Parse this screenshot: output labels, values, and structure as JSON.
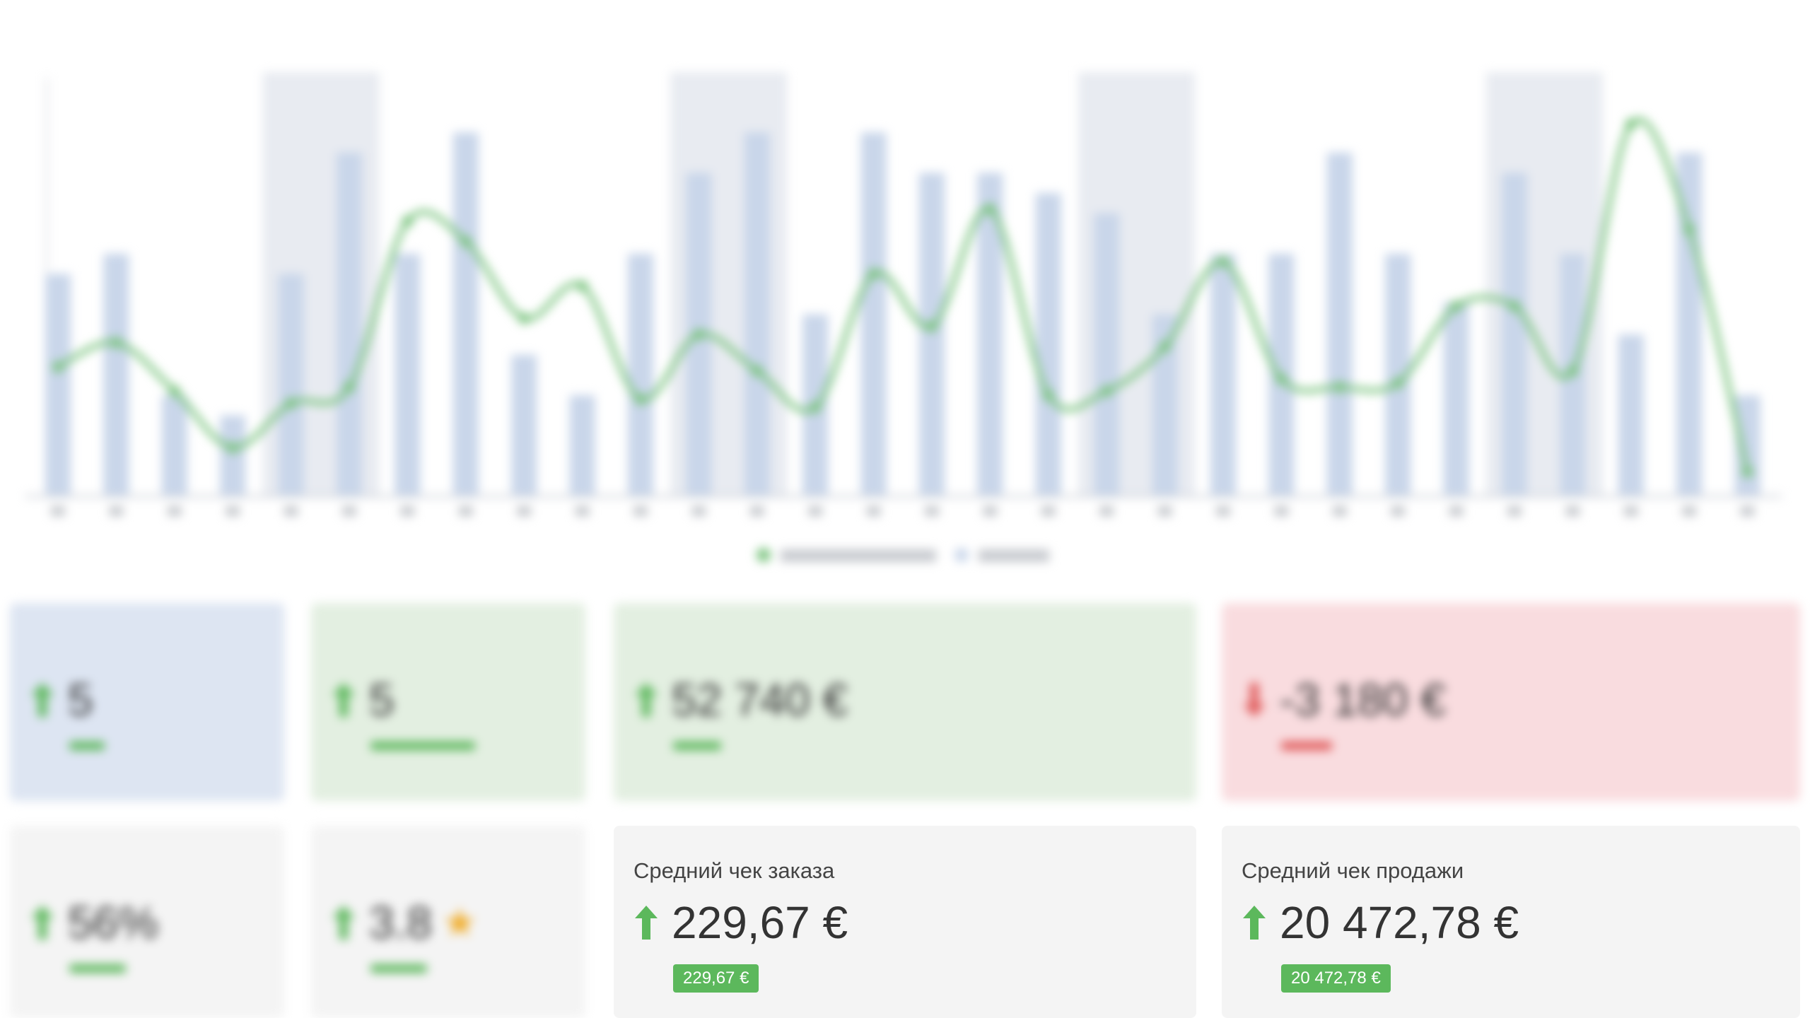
{
  "chart": {
    "title": "",
    "legend": [
      "",
      ""
    ],
    "x_labels": [
      "",
      "",
      "",
      "",
      "",
      "",
      "",
      "",
      "",
      "",
      "",
      "",
      "",
      "",
      "",
      "",
      "",
      "",
      "",
      "",
      "",
      "",
      "",
      "",
      "",
      "",
      "",
      "",
      "",
      ""
    ]
  },
  "chart_data": {
    "type": "bar",
    "title": "",
    "series": [
      {
        "values": [
          5.5,
          6,
          2.5,
          2,
          5.5,
          8.5,
          6,
          9,
          3.5,
          2.5,
          6,
          8,
          9,
          4.5,
          9,
          8,
          8,
          7.5,
          7,
          4.5,
          6,
          6,
          8.5,
          6,
          4.8,
          8,
          6,
          4,
          8.5,
          2.5
        ]
      },
      {
        "values": [
          3.2,
          3.8,
          2.6,
          1.2,
          2.3,
          2.7,
          6.8,
          6.3,
          4.4,
          5.2,
          2.4,
          4,
          3.1,
          2.2,
          5.5,
          4.2,
          7.1,
          2.5,
          2.6,
          3.7,
          5.8,
          2.9,
          2.7,
          2.8,
          4.7,
          4.7,
          3.1,
          9.2,
          6.6,
          0.6
        ]
      }
    ],
    "ylim": [
      0,
      10
    ],
    "highlight_bands": [
      4,
      11,
      18,
      25
    ]
  },
  "cards": [
    {
      "title": "",
      "value": "5",
      "badge": "",
      "tone": "blue",
      "trend": "up"
    },
    {
      "title": "",
      "value": "5",
      "badge": "",
      "tone": "green",
      "trend": "up"
    },
    {
      "title": "",
      "value": "52 740 €",
      "badge": "",
      "tone": "green",
      "trend": "up"
    },
    {
      "title": "",
      "value": "-3 180 €",
      "badge": "",
      "tone": "red",
      "trend": "down"
    },
    {
      "title": "",
      "value": "56%",
      "badge": "",
      "tone": "gray",
      "trend": "up"
    },
    {
      "title": "",
      "value": "3.8",
      "badge": "",
      "tone": "gray",
      "trend": "up",
      "star": "★"
    },
    {
      "title": "Средний чек заказа",
      "value": "229,67 €",
      "badge": "229,67 €",
      "tone": "gray",
      "trend": "up"
    },
    {
      "title": "Средний чек продажи",
      "value": "20 472,78 €",
      "badge": "20 472,78 €",
      "tone": "gray",
      "trend": "up"
    }
  ],
  "colors": {
    "bar": "#c9d6ea",
    "band": "#e8ebf1",
    "line": "#7bc47f",
    "up": "#5cb85c",
    "down": "#e05a5a"
  }
}
